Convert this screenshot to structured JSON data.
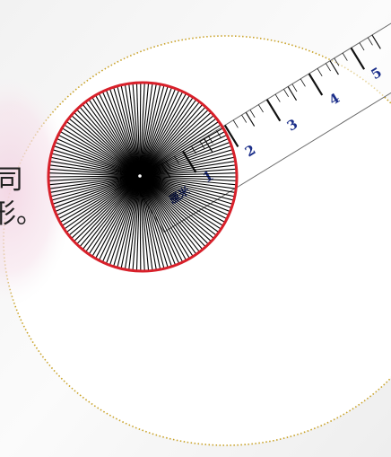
{
  "text_fragments": [
    "司",
    "形。"
  ],
  "ruler": {
    "numbers": [
      "1",
      "2",
      "3",
      "4",
      "5"
    ],
    "unit_label": "厘米",
    "number_color": "#1c2f8a"
  },
  "colors": {
    "circle_outline": "#d8202a",
    "spoke_line": "#000000",
    "ellipse_border": "#c9a227",
    "ellipse_fill": "#ffffff",
    "pink_glow": "#f3d6e4",
    "background": "#f7f7f7"
  },
  "icons": [
    "ruler-icon",
    "circle-spokes-icon"
  ]
}
